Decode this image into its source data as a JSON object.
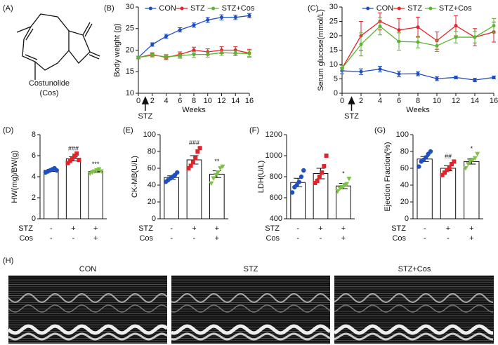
{
  "panel_a": {
    "label": "(A)",
    "compound": "Costunolide",
    "abbr": "(Cos)"
  },
  "chart_data": [
    {
      "type": "line",
      "panel": "(B)",
      "ylabel": "Body weight (g)",
      "xlabel": "Weeks",
      "x": [
        0,
        2,
        4,
        6,
        8,
        10,
        12,
        14,
        16
      ],
      "xlim": [
        0,
        16
      ],
      "xticks": [
        0,
        2,
        4,
        6,
        8,
        10,
        12,
        14,
        16
      ],
      "ylim": [
        10,
        30
      ],
      "yticks": [
        10,
        15,
        20,
        25,
        30
      ],
      "legend": "upper right",
      "annotation": {
        "text": "STZ",
        "x": 1
      },
      "series": [
        {
          "name": "CON",
          "color": "#1f4fbf",
          "values": [
            18.3,
            21.3,
            23.2,
            24.7,
            25.8,
            27.0,
            27.6,
            27.6,
            28.0
          ],
          "errors": [
            0.3,
            0.4,
            0.5,
            0.5,
            0.5,
            0.6,
            0.6,
            0.5,
            0.5
          ]
        },
        {
          "name": "STZ",
          "color": "#e0242b",
          "values": [
            18.3,
            19.0,
            18.3,
            19.0,
            20.0,
            19.6,
            20.0,
            20.0,
            19.3
          ],
          "errors": [
            0.3,
            0.4,
            0.5,
            0.6,
            0.7,
            0.7,
            0.8,
            0.8,
            0.9
          ]
        },
        {
          "name": "STZ+Cos",
          "color": "#5bb531",
          "values": [
            18.3,
            18.8,
            18.5,
            18.7,
            19.0,
            19.0,
            19.4,
            19.3,
            19.2
          ],
          "errors": [
            0.3,
            0.4,
            0.5,
            0.6,
            0.7,
            0.6,
            0.6,
            0.6,
            0.7
          ]
        }
      ]
    },
    {
      "type": "line",
      "panel": "(C)",
      "ylabel": "Serum glucose(mmol/L)",
      "xlabel": "Weeks",
      "x": [
        0,
        2,
        4,
        6,
        8,
        10,
        12,
        14,
        16
      ],
      "xlim": [
        0,
        16
      ],
      "xticks": [
        0,
        2,
        4,
        6,
        8,
        10,
        12,
        14,
        16
      ],
      "ylim": [
        0,
        30
      ],
      "yticks": [
        0,
        5,
        10,
        15,
        20,
        25,
        30
      ],
      "legend": "top",
      "annotation": {
        "text": "STZ",
        "x": 1
      },
      "series": [
        {
          "name": "CON",
          "color": "#1f4fbf",
          "values": [
            7.8,
            7.5,
            8.4,
            6.7,
            6.8,
            5.1,
            5.5,
            4.6,
            5.5
          ],
          "errors": [
            1,
            1,
            1,
            1,
            0.7,
            0.7,
            0.5,
            0.6,
            0.5
          ]
        },
        {
          "name": "STZ",
          "color": "#e0242b",
          "values": [
            8.7,
            20,
            25,
            22,
            23,
            18.3,
            23.5,
            19.5,
            21.3
          ],
          "errors": [
            1,
            5,
            3,
            4,
            3.5,
            3,
            3.5,
            3,
            3.5
          ]
        },
        {
          "name": "STZ+Cos",
          "color": "#5bb531",
          "values": [
            8.7,
            17,
            23.3,
            18,
            17.8,
            16.5,
            19.5,
            19.5,
            23.5
          ],
          "errors": [
            1,
            4,
            3,
            3,
            2,
            2,
            2,
            2,
            2.5
          ]
        }
      ]
    },
    {
      "type": "bar",
      "panel": "(D)",
      "ylabel": "HW(mg)/BW(g)",
      "ylim": [
        0,
        8
      ],
      "yticks": [
        0,
        2,
        4,
        6,
        8
      ],
      "values": [
        4.6,
        5.7,
        4.5
      ],
      "errors": [
        0.1,
        0.2,
        0.08
      ],
      "colors": [
        "#1f4fbf",
        "#e0242b",
        "#7dc242"
      ],
      "markers": [
        "circle",
        "square",
        "triangle"
      ],
      "points": [
        [
          4.4,
          4.5,
          4.6,
          4.7,
          4.8,
          4.6
        ],
        [
          5.3,
          5.5,
          5.7,
          6.0,
          6.2,
          5.6
        ],
        [
          4.3,
          4.4,
          4.5,
          4.6,
          4.7,
          4.5
        ]
      ],
      "annotations": [
        null,
        "###",
        "***"
      ],
      "conditions": [
        {
          "name": "STZ",
          "labels": [
            "-",
            "+",
            "+"
          ]
        },
        {
          "name": "Cos",
          "labels": [
            "-",
            "-",
            "+"
          ]
        }
      ]
    },
    {
      "type": "bar",
      "panel": "(E)",
      "ylabel": "CK-MB(U/L)",
      "ylim": [
        0,
        100
      ],
      "yticks": [
        0,
        20,
        40,
        60,
        80,
        100
      ],
      "values": [
        49,
        70,
        53
      ],
      "errors": [
        2,
        5,
        4
      ],
      "colors": [
        "#1f4fbf",
        "#e0242b",
        "#7dc242"
      ],
      "markers": [
        "circle",
        "square",
        "triangle"
      ],
      "points": [
        [
          44,
          46,
          48,
          50,
          52,
          55
        ],
        [
          60,
          63,
          67,
          72,
          80,
          84
        ],
        [
          42,
          48,
          52,
          55,
          60,
          62
        ]
      ],
      "annotations": [
        null,
        "###",
        "**"
      ],
      "conditions": [
        {
          "name": "STZ",
          "labels": [
            "-",
            "+",
            "+"
          ]
        },
        {
          "name": "Cos",
          "labels": [
            "-",
            "-",
            "+"
          ]
        }
      ]
    },
    {
      "type": "bar",
      "panel": "(F)",
      "ylabel": "LDH(U/L)",
      "ylim": [
        400,
        1200
      ],
      "yticks": [
        400,
        600,
        800,
        1000,
        1200
      ],
      "values": [
        745,
        830,
        712
      ],
      "errors": [
        40,
        50,
        25
      ],
      "colors": [
        "#1f4fbf",
        "#e0242b",
        "#7dc242"
      ],
      "markers": [
        "circle",
        "square",
        "triangle"
      ],
      "points": [
        [
          650,
          700,
          720,
          750,
          800,
          860
        ],
        [
          740,
          760,
          800,
          840,
          900,
          1000
        ],
        [
          660,
          690,
          700,
          720,
          730,
          780
        ]
      ],
      "annotations": [
        null,
        null,
        "*"
      ],
      "conditions": [
        {
          "name": "STZ",
          "labels": [
            "-",
            "+",
            "+"
          ]
        },
        {
          "name": "Cos",
          "labels": [
            "-",
            "-",
            "+"
          ]
        }
      ]
    },
    {
      "type": "bar",
      "panel": "(G)",
      "ylabel": "Ejection Fraction(%)",
      "ylim": [
        0,
        100
      ],
      "yticks": [
        0,
        20,
        40,
        60,
        80,
        100
      ],
      "values": [
        71,
        60,
        68
      ],
      "errors": [
        3,
        3,
        3
      ],
      "colors": [
        "#1f4fbf",
        "#e0242b",
        "#7dc242"
      ],
      "markers": [
        "circle",
        "square",
        "triangle"
      ],
      "points": [
        [
          62,
          68,
          70,
          73,
          77,
          80
        ],
        [
          52,
          55,
          58,
          60,
          65,
          68
        ],
        [
          60,
          65,
          68,
          70,
          72,
          77
        ]
      ],
      "annotations": [
        null,
        "##",
        "*"
      ],
      "conditions": [
        {
          "name": "STZ",
          "labels": [
            "-",
            "+",
            "+"
          ]
        },
        {
          "name": "Cos",
          "labels": [
            "-",
            "-",
            "+"
          ]
        }
      ]
    }
  ],
  "panel_h": {
    "label": "(H)",
    "images": [
      "CON",
      "STZ",
      "STZ+Cos"
    ]
  }
}
